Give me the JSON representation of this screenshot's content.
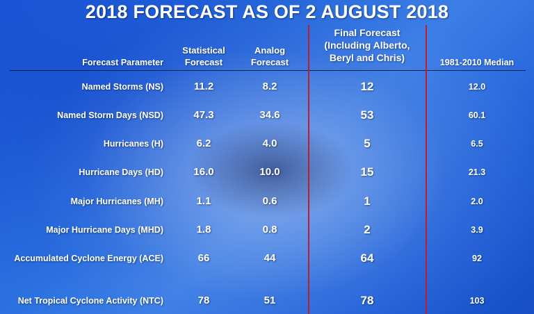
{
  "title": "2018 FORECAST AS OF 2 AUGUST 2018",
  "headers": {
    "parameter": "Forecast Parameter",
    "statistical": [
      "Statistical",
      "Forecast"
    ],
    "analog": [
      "Analog",
      "Forecast"
    ],
    "final": [
      "Final Forecast",
      "(Including Alberto,",
      "Beryl and Chris)"
    ],
    "median": "1981-2010 Median"
  },
  "rows": [
    {
      "parameter": "Named Storms (NS)",
      "statistical": "11.2",
      "analog": "8.2",
      "final": "12",
      "median": "12.0"
    },
    {
      "parameter": "Named Storm Days (NSD)",
      "statistical": "47.3",
      "analog": "34.6",
      "final": "53",
      "median": "60.1"
    },
    {
      "parameter": "Hurricanes (H)",
      "statistical": "6.2",
      "analog": "4.0",
      "final": "5",
      "median": "6.5"
    },
    {
      "parameter": "Hurricane Days (HD)",
      "statistical": "16.0",
      "analog": "10.0",
      "final": "15",
      "median": "21.3"
    },
    {
      "parameter": "Major Hurricanes (MH)",
      "statistical": "1.1",
      "analog": "0.6",
      "final": "1",
      "median": "2.0"
    },
    {
      "parameter": "Major Hurricane Days (MHD)",
      "statistical": "1.8",
      "analog": "0.8",
      "final": "2",
      "median": "3.9"
    },
    {
      "parameter": "Accumulated Cyclone Energy (ACE)",
      "statistical": "66",
      "analog": "44",
      "final": "64",
      "median": "92"
    },
    {
      "parameter": "Net Tropical Cyclone Activity (NTC)",
      "statistical": "78",
      "analog": "51",
      "final": "78",
      "median": "103"
    }
  ],
  "colors": {
    "background": "#2a6fe0",
    "text": "#ffffff",
    "divider": "#c01c2c",
    "header_rule": "#0a1e4a"
  }
}
